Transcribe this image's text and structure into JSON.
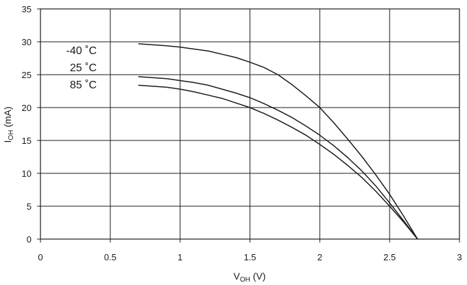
{
  "chart_data": {
    "type": "line",
    "xlabel": {
      "main": "V",
      "sub": "OH",
      "unit": " (V)"
    },
    "ylabel": {
      "main": "I",
      "sub": "OH",
      "unit": " (mA)"
    },
    "xlim": [
      0,
      3
    ],
    "ylim": [
      0,
      35
    ],
    "xticks": [
      0,
      0.5,
      1,
      1.5,
      2,
      2.5,
      3
    ],
    "xtick_labels": [
      "0",
      "0.5",
      "1",
      "1.5",
      "2",
      "2.5",
      "3"
    ],
    "yticks": [
      0,
      5,
      10,
      15,
      20,
      25,
      30,
      35
    ],
    "ytick_labels": [
      "0",
      "5",
      "10",
      "15",
      "20",
      "25",
      "30",
      "35"
    ],
    "grid": true,
    "legend_position": "top-left",
    "series": [
      {
        "name": "-40 ˚C",
        "x": [
          0.7,
          0.9,
          1.0,
          1.1,
          1.2,
          1.3,
          1.4,
          1.5,
          1.6,
          1.7,
          1.8,
          1.9,
          2.0,
          2.1,
          2.2,
          2.3,
          2.4,
          2.5,
          2.6,
          2.7
        ],
        "y": [
          29.7,
          29.4,
          29.2,
          28.9,
          28.6,
          28.1,
          27.6,
          26.9,
          26.1,
          25.0,
          23.5,
          21.8,
          20.0,
          17.7,
          15.2,
          12.6,
          9.8,
          6.8,
          3.5,
          0.0
        ]
      },
      {
        "name": "25 ˚C",
        "x": [
          0.7,
          0.9,
          1.0,
          1.1,
          1.2,
          1.3,
          1.4,
          1.5,
          1.6,
          1.7,
          1.8,
          1.9,
          2.0,
          2.1,
          2.2,
          2.3,
          2.4,
          2.5,
          2.6,
          2.7
        ],
        "y": [
          24.7,
          24.4,
          24.1,
          23.8,
          23.4,
          22.8,
          22.2,
          21.5,
          20.6,
          19.6,
          18.5,
          17.2,
          15.8,
          14.2,
          12.4,
          10.4,
          8.1,
          5.5,
          2.8,
          0.0
        ]
      },
      {
        "name": "85 ˚C",
        "x": [
          0.7,
          0.9,
          1.0,
          1.1,
          1.2,
          1.3,
          1.4,
          1.5,
          1.6,
          1.7,
          1.8,
          1.9,
          2.0,
          2.1,
          2.2,
          2.3,
          2.4,
          2.5,
          2.6,
          2.7
        ],
        "y": [
          23.4,
          23.1,
          22.8,
          22.4,
          21.9,
          21.4,
          20.7,
          20.0,
          19.1,
          18.1,
          17.0,
          15.8,
          14.4,
          12.9,
          11.2,
          9.4,
          7.3,
          5.0,
          2.6,
          0.0
        ]
      }
    ],
    "line_color": "#1a1a1a",
    "grid_color": "#1a1a1a"
  }
}
